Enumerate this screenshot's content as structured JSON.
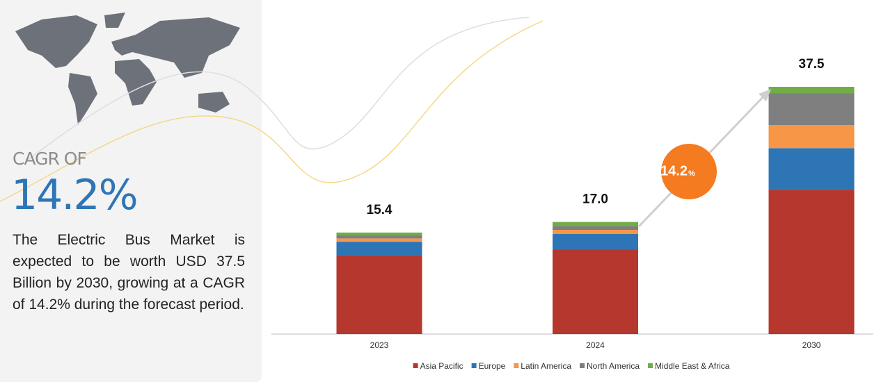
{
  "summary": {
    "heading": "CAGR OF",
    "value": "14.2%",
    "text": "The Electric Bus Market is expected to be worth USD 37.5 Billion by 2030, growing at a CAGR of 14.2% during the forecast period."
  },
  "badge": {
    "number": "14.2",
    "unit": "%"
  },
  "chart_data": {
    "type": "bar",
    "stacked": true,
    "categories": [
      "2023",
      "2024",
      "2030"
    ],
    "series": [
      {
        "name": "Asia Pacific",
        "color": "#b5372e",
        "values": [
          11.9,
          12.8,
          21.9
        ]
      },
      {
        "name": "Europe",
        "color": "#2e75b6",
        "values": [
          2.1,
          2.4,
          6.3
        ]
      },
      {
        "name": "Latin America",
        "color": "#f79646",
        "values": [
          0.5,
          0.6,
          3.5
        ]
      },
      {
        "name": "North America",
        "color": "#7f7f7f",
        "values": [
          0.5,
          0.6,
          4.8
        ]
      },
      {
        "name": "Middle East & Africa",
        "color": "#70ad47",
        "values": [
          0.4,
          0.6,
          1.0
        ]
      }
    ],
    "totals": {
      "values": [
        15.4,
        17,
        37.5
      ],
      "value_labels": [
        "15.4",
        "17.0",
        "37.5"
      ]
    }
  }
}
